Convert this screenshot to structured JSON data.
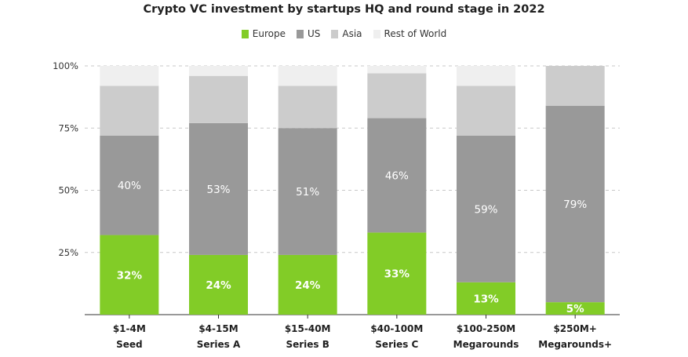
{
  "chart_data": {
    "type": "bar",
    "stacked": true,
    "title": "Crypto VC investment by startups HQ and round stage in 2022",
    "categories": [
      "$1-4M\nSeed",
      "$4-15M\nSeries A",
      "$15-40M\nSeries B",
      "$40-100M\nSeries C",
      "$100-250M\nMegarounds",
      "$250M+\nMegarounds+"
    ],
    "series": [
      {
        "name": "Europe",
        "color": "#82cc27",
        "values": [
          32,
          24,
          24,
          33,
          13,
          5
        ],
        "labels": [
          "32%",
          "24%",
          "24%",
          "33%",
          "13%",
          "5%"
        ]
      },
      {
        "name": "US",
        "color": "#999999",
        "values": [
          40,
          53,
          51,
          46,
          59,
          79
        ],
        "labels": [
          "40%",
          "53%",
          "51%",
          "46%",
          "59%",
          "79%"
        ]
      },
      {
        "name": "Asia",
        "color": "#cccccc",
        "values": [
          20,
          19,
          17,
          18,
          20,
          16
        ],
        "labels": [
          "",
          "",
          "",
          "",
          "",
          ""
        ]
      },
      {
        "name": "Rest of World",
        "color": "#efefef",
        "values": [
          8,
          4,
          8,
          3,
          8,
          0
        ],
        "labels": [
          "",
          "",
          "",
          "",
          "",
          ""
        ]
      }
    ],
    "yticks": [
      "100%",
      "75%",
      "50%",
      "25%"
    ],
    "ytick_values": [
      100,
      75,
      50,
      25
    ],
    "ylim": [
      0,
      100
    ],
    "grid": true,
    "legend_position": "top-center"
  }
}
